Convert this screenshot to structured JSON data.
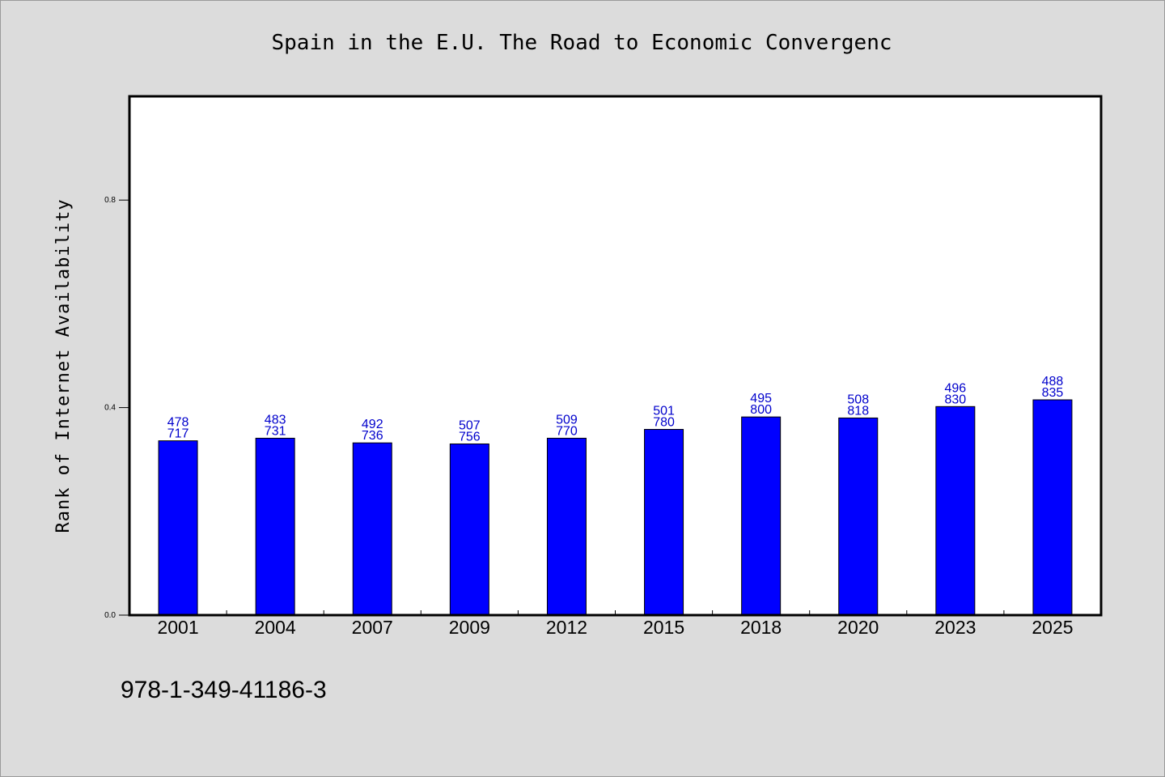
{
  "chart_data": {
    "type": "bar",
    "title": "Spain in the E.U. The Road to Economic Convergenc",
    "ylabel": "Rank of Internet Availability",
    "xlabel": "",
    "categories": [
      "2001",
      "2004",
      "2007",
      "2009",
      "2012",
      "2015",
      "2018",
      "2020",
      "2023",
      "2025"
    ],
    "values": [
      0.336,
      0.341,
      0.332,
      0.33,
      0.341,
      0.358,
      0.382,
      0.38,
      0.402,
      0.415
    ],
    "label_top": [
      "478",
      "483",
      "492",
      "507",
      "509",
      "501",
      "495",
      "508",
      "496",
      "488"
    ],
    "label_bottom": [
      "717",
      "731",
      "736",
      "756",
      "770",
      "780",
      "800",
      "818",
      "830",
      "835"
    ],
    "ylim": [
      0,
      1.0
    ],
    "yticks": [
      0.0,
      0.4,
      0.8
    ],
    "ytick_labels": [
      "0.0",
      "0.4",
      "0.8"
    ],
    "grid": false,
    "legend": "none",
    "colors": {
      "bar": "#0000ff",
      "bar_edge": "#000000",
      "data_label": "#0000cc",
      "plot_bg": "#ffffff",
      "page_bg": "#dcdcdc"
    }
  },
  "footer": {
    "code": "978-1-349-41186-3"
  }
}
